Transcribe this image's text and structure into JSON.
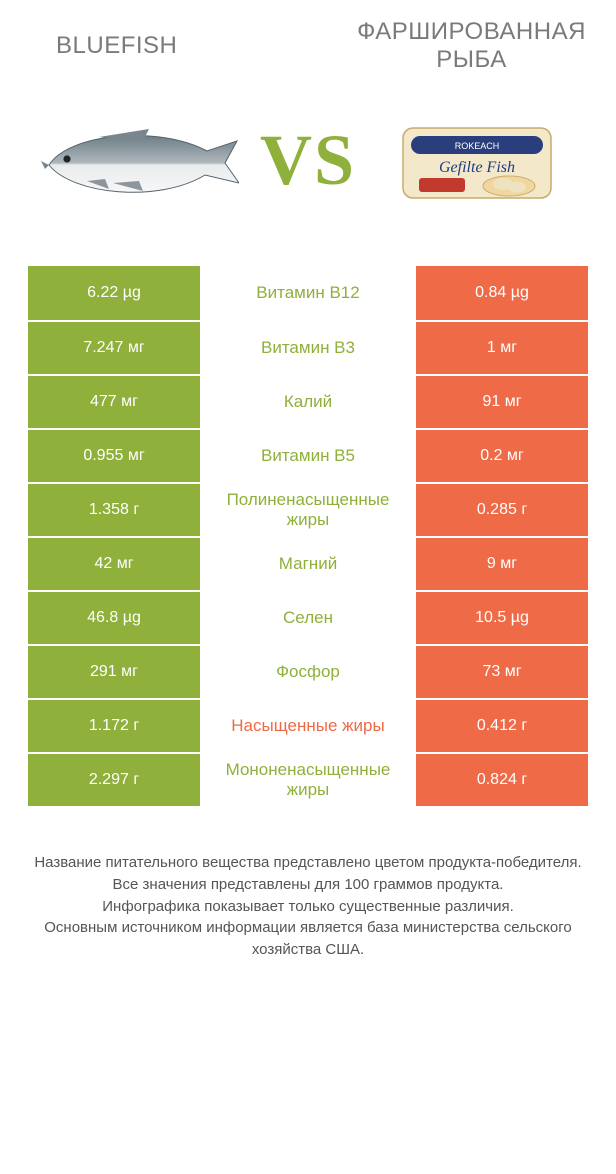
{
  "header": {
    "left_title": "BLUEFISH",
    "right_title": "ФАРШИРОВАННАЯ РЫБА",
    "vs_label": "VS"
  },
  "colors": {
    "left": "#8fb03a",
    "right": "#ef6a47",
    "title_text": "#7a7a7a",
    "vs_text": "#8fb03a",
    "page_bg": "#ffffff",
    "footer_text": "#555555"
  },
  "table": {
    "rows": [
      {
        "left": "6.22 µg",
        "label": "Витамин B12",
        "right": "0.84 µg",
        "winner": "left"
      },
      {
        "left": "7.247 мг",
        "label": "Витамин B3",
        "right": "1 мг",
        "winner": "left"
      },
      {
        "left": "477 мг",
        "label": "Калий",
        "right": "91 мг",
        "winner": "left"
      },
      {
        "left": "0.955 мг",
        "label": "Витамин B5",
        "right": "0.2 мг",
        "winner": "left"
      },
      {
        "left": "1.358 г",
        "label": "Полиненасыщенные жиры",
        "right": "0.285 г",
        "winner": "left"
      },
      {
        "left": "42 мг",
        "label": "Магний",
        "right": "9 мг",
        "winner": "left"
      },
      {
        "left": "46.8 µg",
        "label": "Селен",
        "right": "10.5 µg",
        "winner": "left"
      },
      {
        "left": "291 мг",
        "label": "Фосфор",
        "right": "73 мг",
        "winner": "left"
      },
      {
        "left": "1.172 г",
        "label": "Насыщенные жиры",
        "right": "0.412 г",
        "winner": "right"
      },
      {
        "left": "2.297 г",
        "label": "Мононенасыщенные жиры",
        "right": "0.824 г",
        "winner": "left"
      }
    ]
  },
  "footer": {
    "lines": [
      "Название питательного вещества представлено цветом продукта-победителя.",
      "Все значения представлены для 100 граммов продукта.",
      "Инфографика показывает только существенные различия.",
      "Основным источником информации является база министерства сельского хозяйства США."
    ]
  },
  "package_label": {
    "brand": "ROKEACH",
    "name": "Gefilte Fish"
  }
}
